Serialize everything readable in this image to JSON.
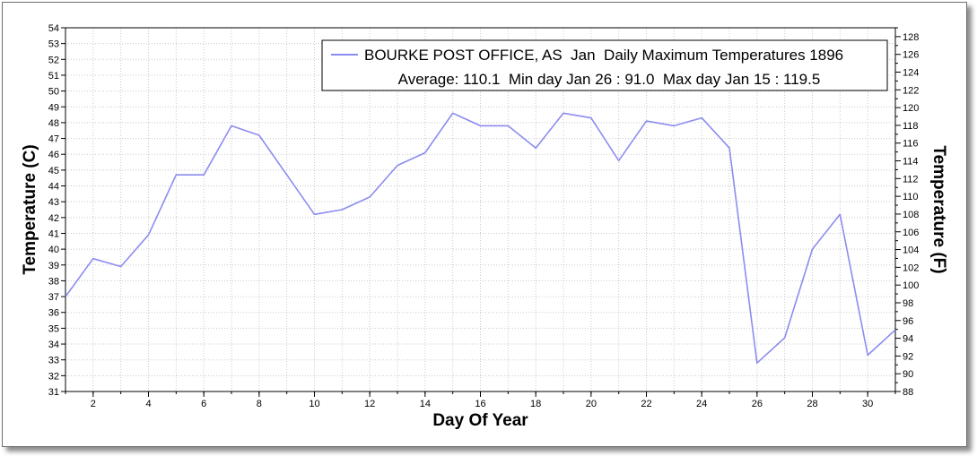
{
  "chart_data": {
    "type": "line",
    "legend": {
      "placement": "top-right",
      "line1": "BOURKE POST OFFICE, AS  Jan  Daily Maximum Temperatures 1896",
      "line2": "Average: 110.1  Min day Jan 26 : 91.0  Max day Jan 15 : 119.5"
    },
    "xlabel": "Day Of Year",
    "ylabel_left": "Temperature (C)",
    "ylabel_right": "Temperature (F)",
    "xlim": [
      1,
      31
    ],
    "ylim_left": [
      31,
      54
    ],
    "ylim_right": [
      88,
      129
    ],
    "x_ticks": [
      2,
      4,
      6,
      8,
      10,
      12,
      14,
      16,
      18,
      20,
      22,
      24,
      26,
      28,
      30
    ],
    "y_left_ticks": [
      31,
      32,
      33,
      34,
      35,
      36,
      37,
      38,
      39,
      40,
      41,
      42,
      43,
      44,
      45,
      46,
      47,
      48,
      49,
      50,
      51,
      52,
      53,
      54
    ],
    "y_right_ticks": [
      88,
      90,
      92,
      94,
      96,
      98,
      100,
      102,
      104,
      106,
      108,
      110,
      112,
      114,
      116,
      118,
      120,
      122,
      124,
      126,
      128
    ],
    "grid": true,
    "line_color": "#8c8cf0",
    "series": [
      {
        "name": "BOURKE POST OFFICE, AS  Jan  Daily Maximum Temperatures 1896",
        "x": [
          1,
          2,
          3,
          4,
          5,
          6,
          7,
          8,
          9,
          10,
          11,
          12,
          13,
          14,
          15,
          16,
          17,
          18,
          19,
          20,
          21,
          22,
          23,
          24,
          25,
          26,
          27,
          28,
          29,
          30,
          31
        ],
        "values": [
          37.0,
          39.4,
          38.9,
          40.9,
          44.7,
          44.7,
          47.8,
          47.2,
          44.7,
          42.2,
          42.5,
          43.3,
          45.3,
          46.1,
          48.6,
          47.8,
          47.8,
          46.4,
          48.6,
          48.3,
          45.6,
          48.1,
          47.8,
          48.3,
          46.4,
          32.8,
          34.4,
          40.0,
          42.2,
          33.3,
          34.9
        ]
      }
    ]
  }
}
